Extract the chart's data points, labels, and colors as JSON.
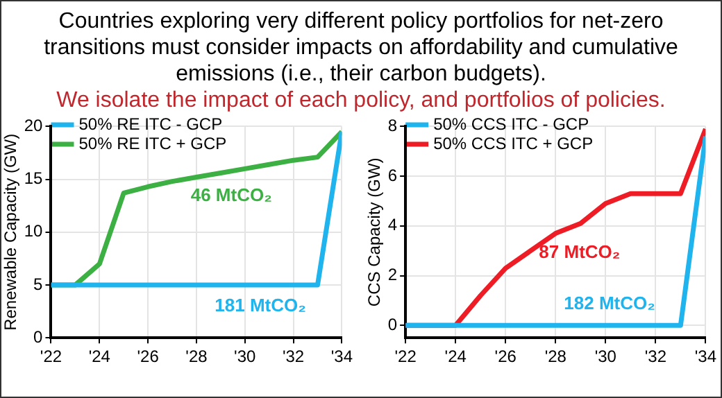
{
  "chart_data": [
    {
      "type": "line",
      "title": "Countries exploring very different policy portfolios for net-zero transitions must consider impacts on affordability and cumulative emissions (i.e., their carbon budgets).",
      "subtitle": "We isolate the impact of each policy, and portfolios of policies.",
      "ylabel": "Renewable Capacity (GW)",
      "x": [
        2022,
        2023,
        2024,
        2025,
        2026,
        2027,
        2028,
        2029,
        2030,
        2031,
        2032,
        2033,
        2034
      ],
      "series": [
        {
          "name": "50% RE ITC - GCP",
          "color": "#1fb4ee",
          "values": [
            5,
            5,
            5,
            5,
            5,
            5,
            5,
            5,
            5,
            5,
            5,
            5,
            19.5
          ]
        },
        {
          "name": "50% RE ITC + GCP",
          "color": "#3cb043",
          "values": [
            5,
            5,
            7,
            13.7,
            14.3,
            14.8,
            15.2,
            15.6,
            16,
            16.4,
            16.8,
            17.1,
            19.5
          ]
        }
      ],
      "annotations": [
        "181 MtCO₂",
        "46 MtCO₂"
      ],
      "xlim": [
        2022,
        2034
      ],
      "xticks": [
        {
          "value": 2022,
          "label": "'22"
        },
        {
          "value": 2024,
          "label": "'24"
        },
        {
          "value": 2026,
          "label": "'26"
        },
        {
          "value": 2028,
          "label": "'28"
        },
        {
          "value": 2030,
          "label": "'30"
        },
        {
          "value": 2032,
          "label": "'32"
        },
        {
          "value": 2034,
          "label": "'34"
        }
      ],
      "ylim": [
        0,
        20
      ],
      "yticks": [
        0,
        5,
        10,
        15,
        20
      ],
      "grid": true,
      "legend": "top left",
      "marker": "none",
      "line_style": "solid"
    },
    {
      "type": "line",
      "ylabel": "CCS Capacity (GW)",
      "x": [
        2022,
        2023,
        2024,
        2025,
        2026,
        2027,
        2028,
        2029,
        2030,
        2031,
        2032,
        2033,
        2034
      ],
      "series": [
        {
          "name": "50% CCS ITC - GCP",
          "color": "#1fb4ee",
          "values": [
            0,
            0,
            0,
            0,
            0,
            0,
            0,
            0,
            0,
            0,
            0,
            0,
            7.6
          ]
        },
        {
          "name": "50% CCS ITC + GCP",
          "color": "#ee1c25",
          "values": [
            0,
            0,
            0,
            1.2,
            2.3,
            3,
            3.7,
            4.1,
            4.9,
            5.3,
            5.3,
            5.3,
            7.9
          ]
        }
      ],
      "annotations": [
        "182 MtCO₂",
        "87 MtCO₂"
      ],
      "xlim": [
        2022,
        2034
      ],
      "xticks": [
        {
          "value": 2022,
          "label": "'22"
        },
        {
          "value": 2024,
          "label": "'24"
        },
        {
          "value": 2026,
          "label": "'26"
        },
        {
          "value": 2028,
          "label": "'28"
        },
        {
          "value": 2030,
          "label": "'30"
        },
        {
          "value": 2032,
          "label": "'32"
        },
        {
          "value": 2034,
          "label": "'34"
        }
      ],
      "ylim": [
        -0.5,
        8
      ],
      "yticks": [
        0,
        2,
        4,
        6,
        8
      ],
      "grid": true,
      "legend": "top left",
      "marker": "none",
      "line_style": "solid"
    }
  ]
}
